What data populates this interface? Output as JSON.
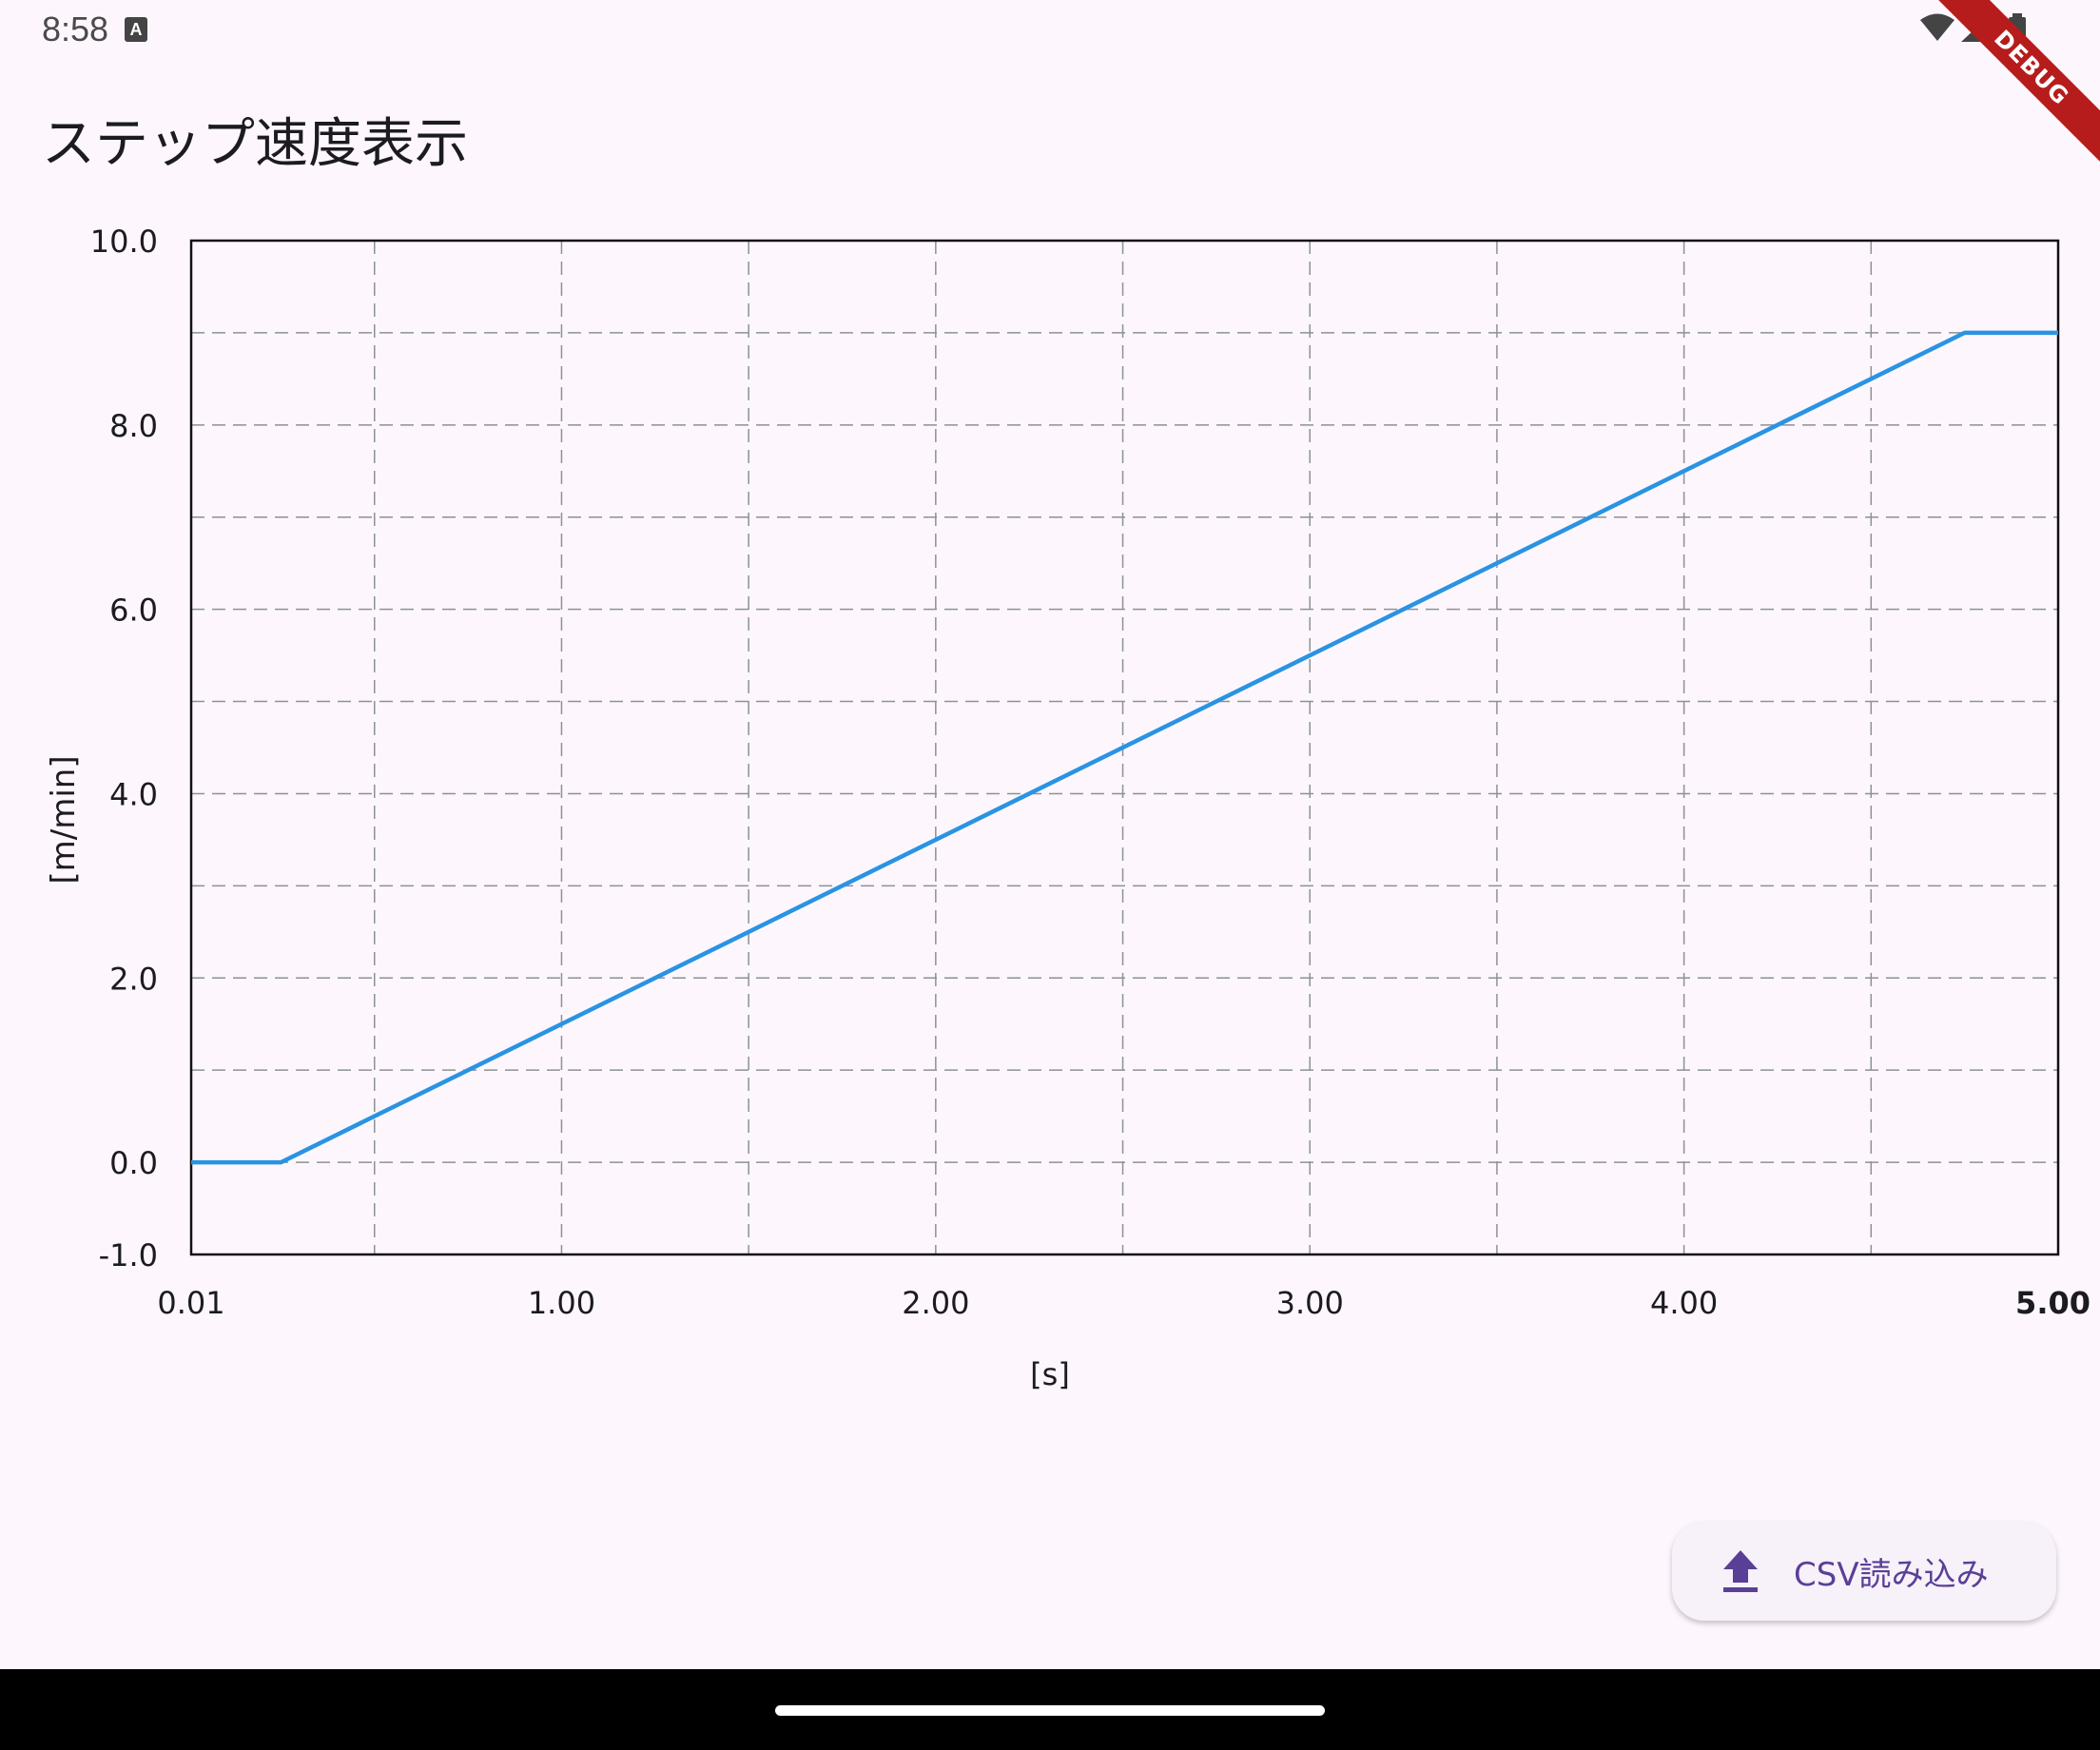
{
  "status_bar": {
    "time": "8:58",
    "notification_icon_letter": "A",
    "icons": [
      "wifi-icon",
      "signal-icon",
      "battery-icon"
    ]
  },
  "debug_banner": "DEBUG",
  "app_bar": {
    "title": "ステップ速度表示"
  },
  "chart_data": {
    "type": "line",
    "xlabel": "[s]",
    "ylabel": "[m/min]",
    "xlim": [
      0.01,
      5.0
    ],
    "ylim": [
      -1.0,
      10.0
    ],
    "x_ticks": [
      "0.01",
      "1.00",
      "2.00",
      "3.00",
      "4.00",
      "5.00"
    ],
    "y_ticks": [
      "10.0",
      "8.0",
      "6.0",
      "4.0",
      "2.0",
      "0.0",
      "-1.0"
    ],
    "grid": true,
    "grid_style": "dashed",
    "line_color": "#2a93e3",
    "series": [
      {
        "x": [
          0.01,
          0.25,
          4.75,
          5.0
        ],
        "y": [
          0.0,
          0.0,
          9.0,
          9.0
        ]
      }
    ]
  },
  "fab": {
    "label": "CSV読み込み",
    "icon": "upload-icon"
  },
  "colors": {
    "background": "#fdf7fd",
    "accent": "#5a3f97",
    "line": "#2a93e3"
  }
}
